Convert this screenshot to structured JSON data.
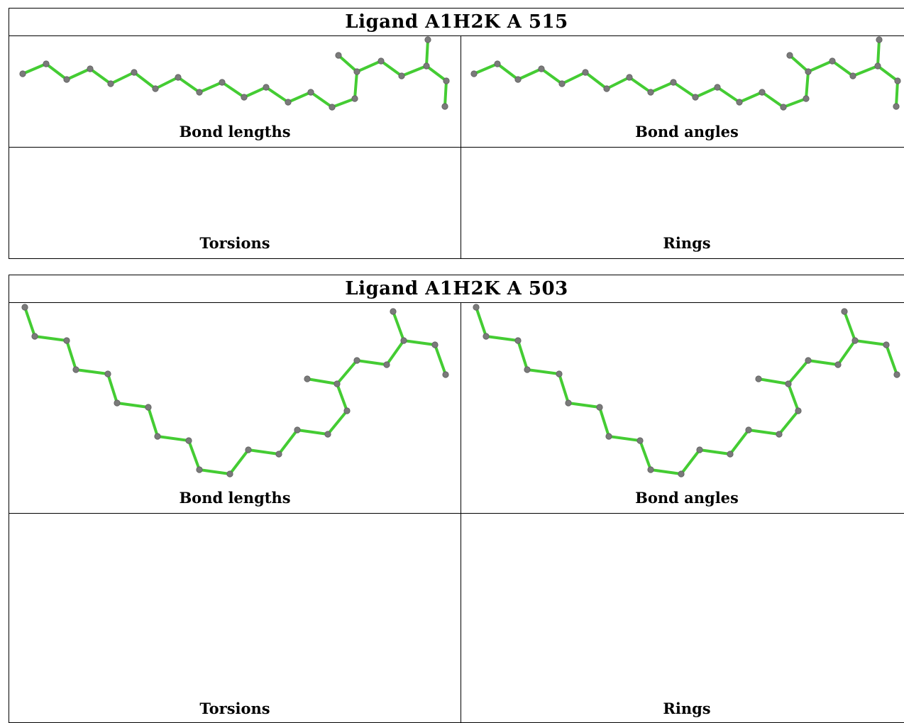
{
  "panels": [
    {
      "title": "Ligand A1H2K A 515",
      "captions": {
        "bond_lengths": "Bond lengths",
        "bond_angles": "Bond angles",
        "torsions": "Torsions",
        "rings": "Rings"
      }
    },
    {
      "title": "Ligand A1H2K A 503",
      "captions": {
        "bond_lengths": "Bond lengths",
        "bond_angles": "Bond angles",
        "torsions": "Torsions",
        "rings": "Rings"
      }
    }
  ],
  "colors": {
    "ok_bond": "#44cc33",
    "outlier_bond": "#e040e0",
    "neutral_bond": "#c8c8c8",
    "atom": "#7a7a7a"
  }
}
